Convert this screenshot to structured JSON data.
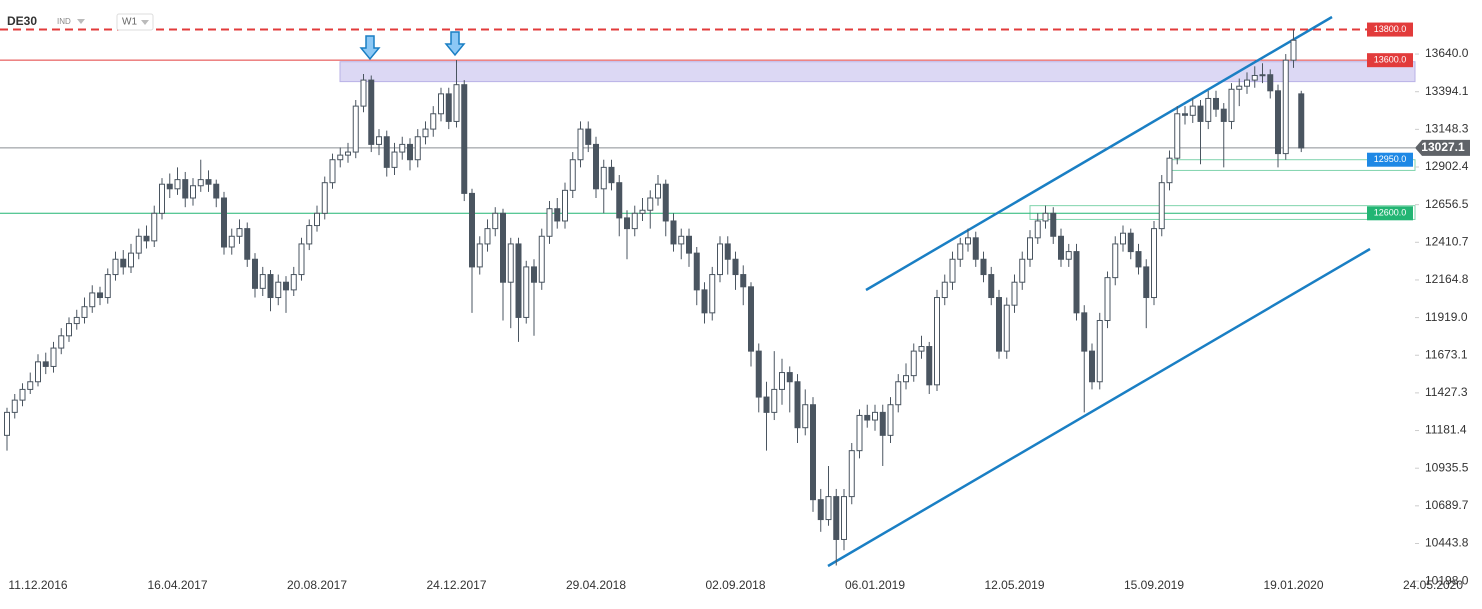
{
  "chart_data": {
    "type": "candlestick",
    "symbol": "DE30",
    "market": "IND",
    "timeframe": "W1",
    "categories": [
      null,
      null,
      null,
      null,
      "11.12.2016",
      null,
      null,
      null,
      null,
      null,
      null,
      null,
      null,
      null,
      null,
      null,
      null,
      null,
      null,
      null,
      null,
      null,
      "16.04.2017",
      null,
      null,
      null,
      null,
      null,
      null,
      null,
      null,
      null,
      null,
      null,
      null,
      null,
      null,
      null,
      null,
      null,
      "20.08.2017",
      null,
      null,
      null,
      null,
      null,
      null,
      null,
      null,
      null,
      null,
      null,
      null,
      null,
      null,
      null,
      null,
      null,
      "24.12.2017",
      null,
      null,
      null,
      null,
      null,
      null,
      null,
      null,
      null,
      null,
      null,
      null,
      null,
      null,
      null,
      null,
      null,
      "29.04.2018",
      null,
      null,
      null,
      null,
      null,
      null,
      null,
      null,
      null,
      null,
      null,
      null,
      null,
      null,
      null,
      null,
      null,
      "02.09.2018",
      null,
      null,
      null,
      null,
      null,
      null,
      null,
      null,
      null,
      null,
      null,
      null,
      null,
      null,
      null,
      null,
      null,
      "06.01.2019",
      null,
      null,
      null,
      null,
      null,
      null,
      null,
      null,
      null,
      null,
      null,
      null,
      null,
      null,
      null,
      null,
      null,
      "12.05.2019",
      null,
      null,
      null,
      null,
      null,
      null,
      null,
      null,
      null,
      null,
      null,
      null,
      null,
      null,
      null,
      null,
      null,
      "15.09.2019",
      null,
      null,
      null,
      null,
      null,
      null,
      null,
      null,
      null,
      null,
      null,
      null,
      null,
      null,
      null,
      null,
      null,
      "19.01.2020",
      null,
      null,
      null,
      null,
      null,
      null,
      null,
      null,
      null,
      null,
      null,
      null,
      null,
      null,
      null,
      null,
      null,
      "24.05.2020"
    ],
    "candles": [
      [
        11150,
        11330,
        11050,
        11300
      ],
      [
        11300,
        11420,
        11260,
        11380
      ],
      [
        11380,
        11490,
        11340,
        11450
      ],
      [
        11450,
        11560,
        11420,
        11500
      ],
      [
        11500,
        11680,
        11470,
        11630
      ],
      [
        11630,
        11690,
        11550,
        11600
      ],
      [
        11600,
        11760,
        11560,
        11720
      ],
      [
        11720,
        11850,
        11680,
        11800
      ],
      [
        11800,
        11920,
        11760,
        11880
      ],
      [
        11880,
        11970,
        11840,
        11920
      ],
      [
        11920,
        12050,
        11880,
        11990
      ],
      [
        11990,
        12130,
        11950,
        12080
      ],
      [
        12080,
        12120,
        12000,
        12050
      ],
      [
        12050,
        12240,
        12010,
        12200
      ],
      [
        12200,
        12350,
        12160,
        12300
      ],
      [
        12300,
        12360,
        12200,
        12250
      ],
      [
        12250,
        12400,
        12210,
        12340
      ],
      [
        12340,
        12500,
        12300,
        12450
      ],
      [
        12450,
        12520,
        12370,
        12420
      ],
      [
        12420,
        12650,
        12380,
        12600
      ],
      [
        12600,
        12830,
        12560,
        12790
      ],
      [
        12790,
        12860,
        12700,
        12760
      ],
      [
        12760,
        12900,
        12720,
        12820
      ],
      [
        12820,
        12870,
        12640,
        12700
      ],
      [
        12700,
        12830,
        12650,
        12780
      ],
      [
        12780,
        12950,
        12740,
        12820
      ],
      [
        12820,
        12880,
        12740,
        12790
      ],
      [
        12790,
        12820,
        12640,
        12700
      ],
      [
        12700,
        12740,
        12330,
        12380
      ],
      [
        12380,
        12500,
        12330,
        12450
      ],
      [
        12450,
        12560,
        12400,
        12500
      ],
      [
        12500,
        12540,
        12250,
        12300
      ],
      [
        12300,
        12340,
        12050,
        12110
      ],
      [
        12110,
        12250,
        12060,
        12200
      ],
      [
        12200,
        12230,
        11960,
        12050
      ],
      [
        12050,
        12200,
        12000,
        12150
      ],
      [
        12150,
        12190,
        11950,
        12100
      ],
      [
        12100,
        12250,
        12060,
        12200
      ],
      [
        12200,
        12440,
        12160,
        12400
      ],
      [
        12400,
        12560,
        12360,
        12520
      ],
      [
        12520,
        12650,
        12480,
        12600
      ],
      [
        12600,
        12840,
        12560,
        12800
      ],
      [
        12800,
        12990,
        12760,
        12950
      ],
      [
        12950,
        13030,
        12900,
        12980
      ],
      [
        12980,
        13060,
        12930,
        13000
      ],
      [
        13000,
        13340,
        12960,
        13300
      ],
      [
        13300,
        13510,
        13260,
        13470
      ],
      [
        13470,
        13500,
        13000,
        13050
      ],
      [
        13050,
        13150,
        12980,
        13100
      ],
      [
        13100,
        13140,
        12840,
        12900
      ],
      [
        12900,
        13060,
        12850,
        13000
      ],
      [
        13000,
        13100,
        12950,
        13050
      ],
      [
        13050,
        13090,
        12880,
        12950
      ],
      [
        12950,
        13150,
        12900,
        13100
      ],
      [
        13100,
        13200,
        13050,
        13150
      ],
      [
        13150,
        13300,
        13100,
        13250
      ],
      [
        13250,
        13420,
        13200,
        13380
      ],
      [
        13380,
        13420,
        13150,
        13200
      ],
      [
        13200,
        13600,
        13160,
        13440
      ],
      [
        13440,
        13470,
        12680,
        12730
      ],
      [
        12730,
        12760,
        11950,
        12250
      ],
      [
        12250,
        12450,
        12200,
        12400
      ],
      [
        12400,
        12560,
        12350,
        12500
      ],
      [
        12500,
        12640,
        12450,
        12600
      ],
      [
        12600,
        12630,
        11900,
        12150
      ],
      [
        12150,
        12440,
        11850,
        12400
      ],
      [
        12400,
        12440,
        11760,
        11920
      ],
      [
        11920,
        12290,
        11880,
        12250
      ],
      [
        12250,
        12300,
        11800,
        12150
      ],
      [
        12150,
        12500,
        12100,
        12450
      ],
      [
        12450,
        12680,
        12400,
        12630
      ],
      [
        12630,
        12700,
        12500,
        12550
      ],
      [
        12550,
        12800,
        12500,
        12750
      ],
      [
        12750,
        13000,
        12700,
        12950
      ],
      [
        12950,
        13200,
        12900,
        13150
      ],
      [
        13150,
        13200,
        13000,
        13050
      ],
      [
        13050,
        13100,
        12700,
        12760
      ],
      [
        12760,
        12950,
        12600,
        12900
      ],
      [
        12900,
        12950,
        12750,
        12800
      ],
      [
        12800,
        12850,
        12450,
        12570
      ],
      [
        12570,
        12620,
        12300,
        12500
      ],
      [
        12500,
        12650,
        12450,
        12600
      ],
      [
        12600,
        12700,
        12550,
        12620
      ],
      [
        12620,
        12750,
        12500,
        12700
      ],
      [
        12700,
        12850,
        12650,
        12790
      ],
      [
        12790,
        12820,
        12450,
        12550
      ],
      [
        12550,
        12600,
        12350,
        12400
      ],
      [
        12400,
        12500,
        12300,
        12450
      ],
      [
        12450,
        12500,
        12250,
        12340
      ],
      [
        12340,
        12380,
        12000,
        12100
      ],
      [
        12100,
        12150,
        11880,
        11950
      ],
      [
        11950,
        12250,
        11900,
        12200
      ],
      [
        12200,
        12450,
        12150,
        12400
      ],
      [
        12400,
        12450,
        12200,
        12300
      ],
      [
        12300,
        12350,
        12100,
        12200
      ],
      [
        12200,
        12260,
        12000,
        12120
      ],
      [
        12120,
        12150,
        11600,
        11700
      ],
      [
        11700,
        11750,
        11300,
        11400
      ],
      [
        11400,
        11500,
        11050,
        11300
      ],
      [
        11300,
        11700,
        11250,
        11450
      ],
      [
        11450,
        11650,
        11350,
        11560
      ],
      [
        11560,
        11600,
        11300,
        11500
      ],
      [
        11500,
        11550,
        11100,
        11200
      ],
      [
        11200,
        11450,
        11150,
        11350
      ],
      [
        11350,
        11400,
        10650,
        10730
      ],
      [
        10730,
        10800,
        10520,
        10600
      ],
      [
        10600,
        10950,
        10560,
        10750
      ],
      [
        10750,
        10800,
        10300,
        10470
      ],
      [
        10470,
        10800,
        10400,
        10750
      ],
      [
        10750,
        11100,
        10700,
        11050
      ],
      [
        11050,
        11320,
        11000,
        11280
      ],
      [
        11280,
        11350,
        11200,
        11250
      ],
      [
        11250,
        11350,
        11180,
        11300
      ],
      [
        11300,
        11350,
        10950,
        11150
      ],
      [
        11150,
        11400,
        11100,
        11350
      ],
      [
        11350,
        11550,
        11300,
        11500
      ],
      [
        11500,
        11620,
        11450,
        11540
      ],
      [
        11540,
        11750,
        11500,
        11700
      ],
      [
        11700,
        11800,
        11650,
        11730
      ],
      [
        11730,
        11760,
        11420,
        11480
      ],
      [
        11480,
        12100,
        11440,
        12050
      ],
      [
        12050,
        12200,
        12000,
        12150
      ],
      [
        12150,
        12350,
        12100,
        12300
      ],
      [
        12300,
        12440,
        12250,
        12400
      ],
      [
        12400,
        12500,
        12350,
        12440
      ],
      [
        12440,
        12480,
        12250,
        12300
      ],
      [
        12300,
        12350,
        12150,
        12200
      ],
      [
        12200,
        12250,
        12000,
        12050
      ],
      [
        12050,
        12100,
        11650,
        11700
      ],
      [
        11700,
        12050,
        11650,
        12000
      ],
      [
        12000,
        12200,
        11950,
        12150
      ],
      [
        12150,
        12350,
        12100,
        12300
      ],
      [
        12300,
        12490,
        12250,
        12440
      ],
      [
        12440,
        12600,
        12400,
        12550
      ],
      [
        12550,
        12650,
        12500,
        12600
      ],
      [
        12600,
        12640,
        12400,
        12450
      ],
      [
        12450,
        12500,
        12250,
        12300
      ],
      [
        12300,
        12400,
        12250,
        12350
      ],
      [
        12350,
        12400,
        11900,
        11950
      ],
      [
        11950,
        12000,
        11300,
        11700
      ],
      [
        11700,
        11750,
        11450,
        11500
      ],
      [
        11500,
        11950,
        11450,
        11900
      ],
      [
        11900,
        12220,
        11850,
        12180
      ],
      [
        12180,
        12450,
        12130,
        12400
      ],
      [
        12400,
        12520,
        12350,
        12470
      ],
      [
        12470,
        12500,
        12300,
        12350
      ],
      [
        12350,
        12400,
        12200,
        12250
      ],
      [
        12250,
        12300,
        11850,
        12050
      ],
      [
        12050,
        12550,
        12000,
        12500
      ],
      [
        12500,
        12850,
        12450,
        12800
      ],
      [
        12800,
        13010,
        12750,
        12960
      ],
      [
        12960,
        13300,
        12920,
        13250
      ],
      [
        13250,
        13300,
        13180,
        13240
      ],
      [
        13240,
        13350,
        13190,
        13300
      ],
      [
        13300,
        13340,
        12920,
        13200
      ],
      [
        13200,
        13400,
        13150,
        13350
      ],
      [
        13350,
        13400,
        13230,
        13280
      ],
      [
        13280,
        13320,
        12900,
        13200
      ],
      [
        13200,
        13450,
        13150,
        13410
      ],
      [
        13410,
        13480,
        13300,
        13430
      ],
      [
        13430,
        13520,
        13380,
        13470
      ],
      [
        13470,
        13560,
        13420,
        13500
      ],
      [
        13500,
        13580,
        13450,
        13505
      ],
      [
        13505,
        13540,
        13350,
        13400
      ],
      [
        13400,
        13440,
        12900,
        12990
      ],
      [
        12990,
        13640,
        12950,
        13600
      ],
      [
        13600,
        13800,
        13550,
        13730
      ],
      [
        13380,
        13400,
        13000,
        13027.1
      ]
    ],
    "ylim": [
      10238,
      13993
    ],
    "yticks": [
      {
        "value": 13640,
        "label": "13640.0"
      },
      {
        "value": 13394.1,
        "label": "13394.1"
      },
      {
        "value": 13148.3,
        "label": "13148.3"
      },
      {
        "value": 12902.4,
        "label": "12902.4"
      },
      {
        "value": 12656.5,
        "label": "12656.5"
      },
      {
        "value": 12410.7,
        "label": "12410.7"
      },
      {
        "value": 12164.8,
        "label": "12164.8"
      },
      {
        "value": 11919,
        "label": "11919.0"
      },
      {
        "value": 11673.1,
        "label": "11673.1"
      },
      {
        "value": 11427.3,
        "label": "11427.3"
      },
      {
        "value": 11181.4,
        "label": "11181.4"
      },
      {
        "value": 10935.5,
        "label": "10935.5"
      },
      {
        "value": 10689.7,
        "label": "10689.7"
      },
      {
        "value": 10443.8,
        "label": "10443.8"
      },
      {
        "value": 10198,
        "label": "10198.0"
      }
    ],
    "levels": [
      {
        "value": 13800,
        "label": "13800.0",
        "color": "#e23b3b",
        "line": "dashed"
      },
      {
        "value": 13600,
        "label": "13600.0",
        "color": "#e23b3b",
        "line": "solid"
      },
      {
        "value": 12950,
        "label": "12950.0",
        "color": "#1e88e5",
        "line": "none"
      },
      {
        "value": 12600,
        "label": "12600.0",
        "color": "#22b573",
        "line": "solid"
      }
    ],
    "last_price": {
      "value": 13027.1,
      "label": "13027.1",
      "color": "#5f6368"
    },
    "zones": [
      {
        "low": 13460,
        "high": 13590,
        "color": "#dcd8f4"
      },
      {
        "low": 12880,
        "high": 12950,
        "color": "#ffffff"
      },
      {
        "low": 12560,
        "high": 12650,
        "color": "#ffffff"
      }
    ],
    "up_color": "#ffffff",
    "down_color": "#4a5560"
  }
}
